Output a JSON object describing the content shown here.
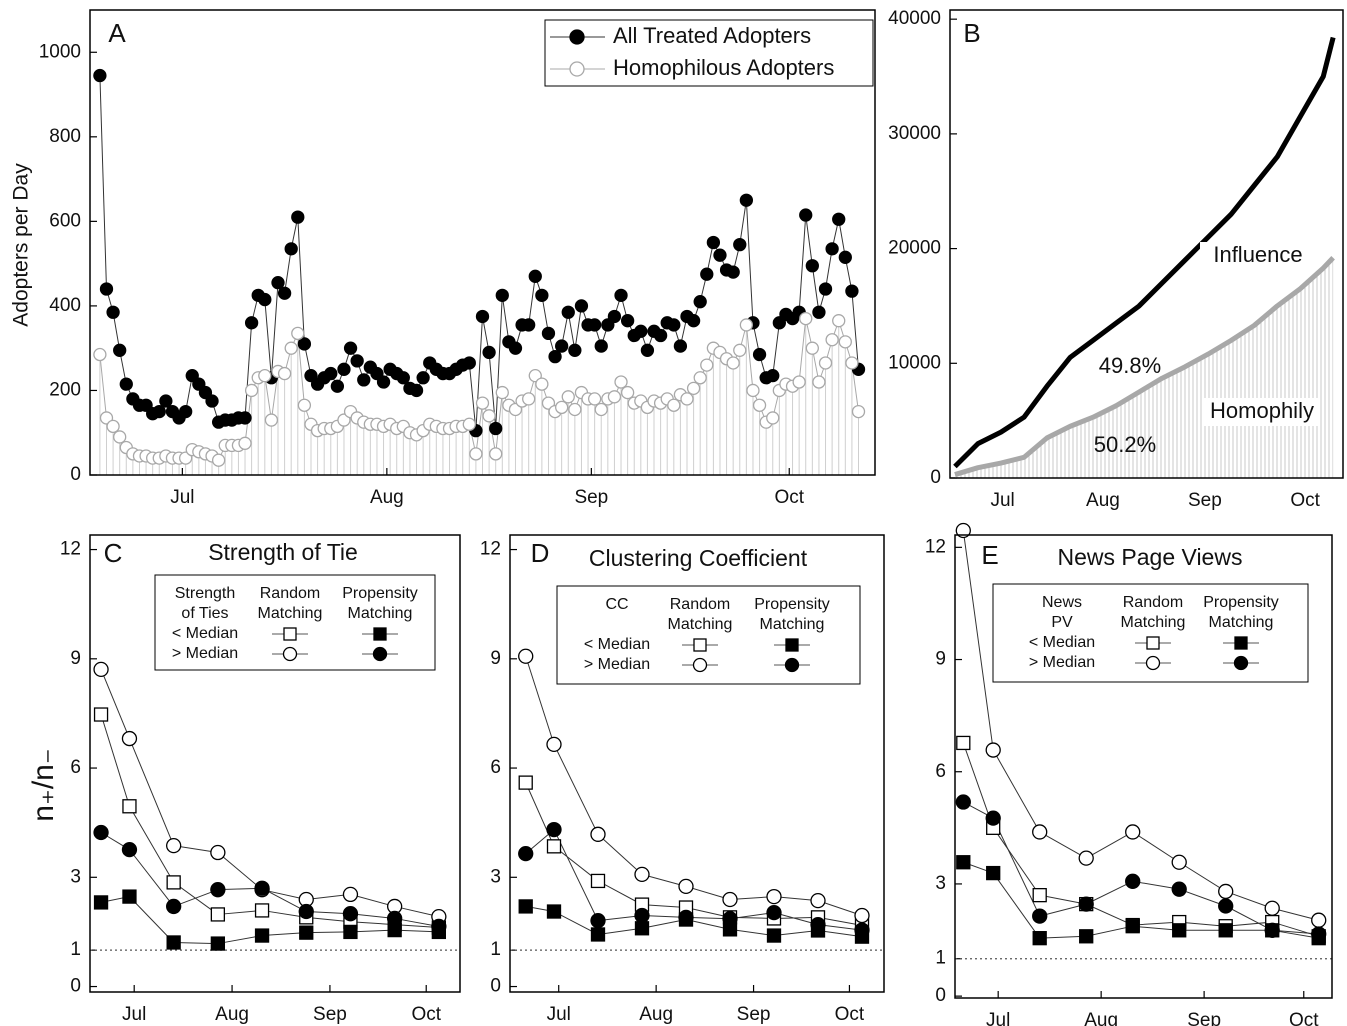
{
  "chart_data": [
    {
      "type": "line",
      "label": "A",
      "ylabel": "Adopters per Day",
      "xlim": [
        -1.5,
        117.5
      ],
      "xticks": [
        {
          "value": 12.5,
          "label": "Jul"
        },
        {
          "value": 43.5,
          "label": "Aug"
        },
        {
          "value": 74.5,
          "label": "Sep"
        },
        {
          "value": 104.5,
          "label": "Oct"
        }
      ],
      "ylim": [
        0,
        1100
      ],
      "yticks": [
        0,
        200,
        400,
        600,
        800,
        1000
      ],
      "legend": "upper right",
      "series": [
        {
          "name": "All Treated Adopters",
          "color": "#000000",
          "marker": "filled-circle",
          "values": [
            945,
            440,
            385,
            295,
            215,
            180,
            165,
            165,
            145,
            150,
            175,
            150,
            135,
            150,
            235,
            215,
            195,
            175,
            125,
            130,
            130,
            135,
            135,
            360,
            425,
            415,
            230,
            455,
            430,
            535,
            610,
            310,
            235,
            215,
            230,
            240,
            210,
            250,
            300,
            270,
            225,
            255,
            240,
            220,
            250,
            240,
            230,
            205,
            200,
            230,
            265,
            250,
            240,
            240,
            250,
            260,
            265,
            105,
            375,
            290,
            110,
            425,
            315,
            300,
            355,
            355,
            470,
            425,
            335,
            280,
            305,
            385,
            295,
            400,
            355,
            355,
            305,
            355,
            375,
            425,
            365,
            330,
            340,
            295,
            340,
            330,
            360,
            355,
            305,
            375,
            365,
            410,
            475,
            550,
            520,
            485,
            480,
            545,
            650,
            360,
            285,
            230,
            235,
            360,
            380,
            370,
            385,
            615,
            495,
            385,
            440,
            535,
            605,
            515,
            435,
            250
          ]
        },
        {
          "name": "Homophilous Adopters",
          "color": "#a8a8a8",
          "marker": "open-circle",
          "drop_lines": true,
          "values": [
            285,
            135,
            115,
            90,
            65,
            50,
            45,
            45,
            40,
            40,
            45,
            40,
            40,
            40,
            60,
            55,
            50,
            45,
            35,
            70,
            70,
            70,
            75,
            200,
            230,
            235,
            130,
            245,
            240,
            300,
            335,
            165,
            120,
            105,
            110,
            110,
            115,
            130,
            150,
            135,
            125,
            120,
            120,
            115,
            120,
            110,
            115,
            100,
            95,
            105,
            120,
            115,
            110,
            110,
            115,
            115,
            120,
            50,
            170,
            140,
            50,
            195,
            165,
            155,
            175,
            180,
            235,
            215,
            170,
            150,
            160,
            185,
            155,
            195,
            180,
            180,
            155,
            180,
            185,
            220,
            195,
            170,
            175,
            160,
            175,
            170,
            180,
            165,
            190,
            180,
            205,
            230,
            260,
            300,
            290,
            275,
            265,
            295,
            355,
            200,
            165,
            125,
            135,
            200,
            215,
            210,
            220,
            370,
            300,
            220,
            265,
            320,
            365,
            315,
            265,
            150
          ]
        }
      ]
    },
    {
      "type": "line",
      "label": "B",
      "x": [
        0,
        7,
        14,
        21,
        28,
        35,
        42,
        49,
        56,
        63,
        70,
        77,
        84,
        91,
        98,
        105,
        112,
        115
      ],
      "xlim": [
        -1.5,
        118
      ],
      "xticks": [
        {
          "value": 14.5,
          "label": "Jul"
        },
        {
          "value": 45,
          "label": "Aug"
        },
        {
          "value": 76,
          "label": "Sep"
        },
        {
          "value": 106.5,
          "label": "Oct"
        }
      ],
      "ylim": [
        0,
        40800
      ],
      "yticks": [
        0,
        10000,
        20000,
        30000,
        40000
      ],
      "annotations": [
        "Influence",
        "Homophily",
        "49.8%",
        "50.2%"
      ],
      "series": [
        {
          "color": "#000000",
          "values": [
            1000,
            3000,
            4000,
            5300,
            8000,
            10500,
            12000,
            13500,
            15000,
            17000,
            19000,
            21000,
            23000,
            25500,
            28000,
            31500,
            35000,
            38400
          ]
        },
        {
          "color": "#a8a8a8",
          "area": true,
          "values": [
            300,
            900,
            1300,
            1800,
            3500,
            4500,
            5300,
            6300,
            7500,
            8700,
            9700,
            10800,
            12000,
            13300,
            15000,
            16500,
            18300,
            19200
          ]
        }
      ]
    },
    {
      "type": "line",
      "label": "C",
      "title": "Strength of Tie",
      "ylabel": "n₊/n₋",
      "x": [
        2,
        11,
        25,
        39,
        53,
        67,
        81,
        95,
        109
      ],
      "xlim": [
        -1.5,
        115.7
      ],
      "xticks": [
        {
          "value": 12.5,
          "label": "Jul"
        },
        {
          "value": 43.5,
          "label": "Aug"
        },
        {
          "value": 74.5,
          "label": "Sep"
        },
        {
          "value": 105,
          "label": "Oct"
        }
      ],
      "ylim": [
        -0.15,
        12.4
      ],
      "yticks": [
        0,
        1,
        3,
        6,
        9,
        12
      ],
      "hline": 1,
      "legend": {
        "header": [
          [
            "Strength",
            "of Ties"
          ],
          [
            "Random",
            "Matching"
          ],
          [
            "Propensity",
            "Matching"
          ]
        ],
        "rows": [
          "< Median",
          "> Median"
        ]
      },
      "series": [
        {
          "color": "#000000",
          "marker": "open-square",
          "values": [
            7.47,
            4.95,
            2.86,
            1.98,
            2.09,
            1.9,
            1.78,
            1.7,
            1.62
          ]
        },
        {
          "color": "#000000",
          "marker": "open-circle",
          "values": [
            8.71,
            6.81,
            3.87,
            3.68,
            2.66,
            2.39,
            2.53,
            2.2,
            1.92
          ]
        },
        {
          "color": "#000000",
          "marker": "filled-square",
          "values": [
            2.31,
            2.47,
            1.21,
            1.18,
            1.4,
            1.48,
            1.5,
            1.55,
            1.5
          ]
        },
        {
          "color": "#000000",
          "marker": "filled-circle",
          "values": [
            4.23,
            3.76,
            2.2,
            2.66,
            2.7,
            2.06,
            2.0,
            1.87,
            1.65
          ]
        }
      ]
    },
    {
      "type": "line",
      "label": "D",
      "title": "Clustering Coefficient",
      "x": [
        2,
        11,
        25,
        39,
        53,
        67,
        81,
        95,
        109
      ],
      "xlim": [
        -3,
        116
      ],
      "xticks": [
        {
          "value": 12.5,
          "label": "Jul"
        },
        {
          "value": 43.5,
          "label": "Aug"
        },
        {
          "value": 74.5,
          "label": "Sep"
        },
        {
          "value": 105,
          "label": "Oct"
        }
      ],
      "ylim": [
        -0.15,
        12.4
      ],
      "yticks": [
        0,
        1,
        3,
        6,
        9,
        12
      ],
      "hline": 1,
      "legend": {
        "header": [
          [
            "CC"
          ],
          [
            "Random",
            "Matching"
          ],
          [
            "Propensity",
            "Matching"
          ]
        ],
        "rows": [
          "< Median",
          "> Median"
        ]
      },
      "series": [
        {
          "color": "#000000",
          "marker": "open-square",
          "values": [
            5.6,
            3.85,
            2.9,
            2.25,
            2.17,
            1.9,
            1.87,
            1.9,
            1.68
          ]
        },
        {
          "color": "#000000",
          "marker": "open-circle",
          "values": [
            9.07,
            6.65,
            4.18,
            3.08,
            2.75,
            2.39,
            2.47,
            2.36,
            1.95
          ]
        },
        {
          "color": "#000000",
          "marker": "filled-square",
          "values": [
            2.2,
            2.06,
            1.43,
            1.6,
            1.84,
            1.57,
            1.4,
            1.54,
            1.37
          ]
        },
        {
          "color": "#000000",
          "marker": "filled-circle",
          "values": [
            3.65,
            4.31,
            1.81,
            1.95,
            1.9,
            1.86,
            2.03,
            1.7,
            1.55
          ]
        }
      ]
    },
    {
      "type": "line",
      "label": "E",
      "title": "News Page Views",
      "x": [
        2,
        11,
        25,
        39,
        53,
        67,
        81,
        95,
        109
      ],
      "xlim": [
        -0.5,
        113
      ],
      "xticks": [
        {
          "value": 12.5,
          "label": "Jul"
        },
        {
          "value": 43.5,
          "label": "Aug"
        },
        {
          "value": 74.5,
          "label": "Sep"
        },
        {
          "value": 104.5,
          "label": "Oct"
        }
      ],
      "ylim": [
        -0.05,
        12.33
      ],
      "yticks": [
        0,
        1,
        3,
        6,
        9,
        12
      ],
      "hline": 1,
      "legend": {
        "header": [
          [
            "News",
            "PV"
          ],
          [
            "Random",
            "Matching"
          ],
          [
            "Propensity",
            "Matching"
          ]
        ],
        "rows": [
          "< Median",
          "> Median"
        ]
      },
      "series": [
        {
          "color": "#000000",
          "marker": "open-square",
          "values": [
            6.77,
            4.5,
            2.7,
            2.46,
            1.9,
            1.98,
            1.87,
            1.98,
            1.6
          ]
        },
        {
          "color": "#000000",
          "marker": "open-circle",
          "values": [
            12.45,
            6.58,
            4.39,
            3.69,
            4.39,
            3.58,
            2.8,
            2.35,
            2.03
          ]
        },
        {
          "color": "#000000",
          "marker": "filled-square",
          "values": [
            3.58,
            3.29,
            1.55,
            1.6,
            1.87,
            1.76,
            1.76,
            1.76,
            1.55
          ]
        },
        {
          "color": "#000000",
          "marker": "filled-circle",
          "values": [
            5.19,
            4.76,
            2.14,
            2.46,
            3.07,
            2.86,
            2.41,
            1.76,
            1.66
          ]
        }
      ]
    }
  ]
}
